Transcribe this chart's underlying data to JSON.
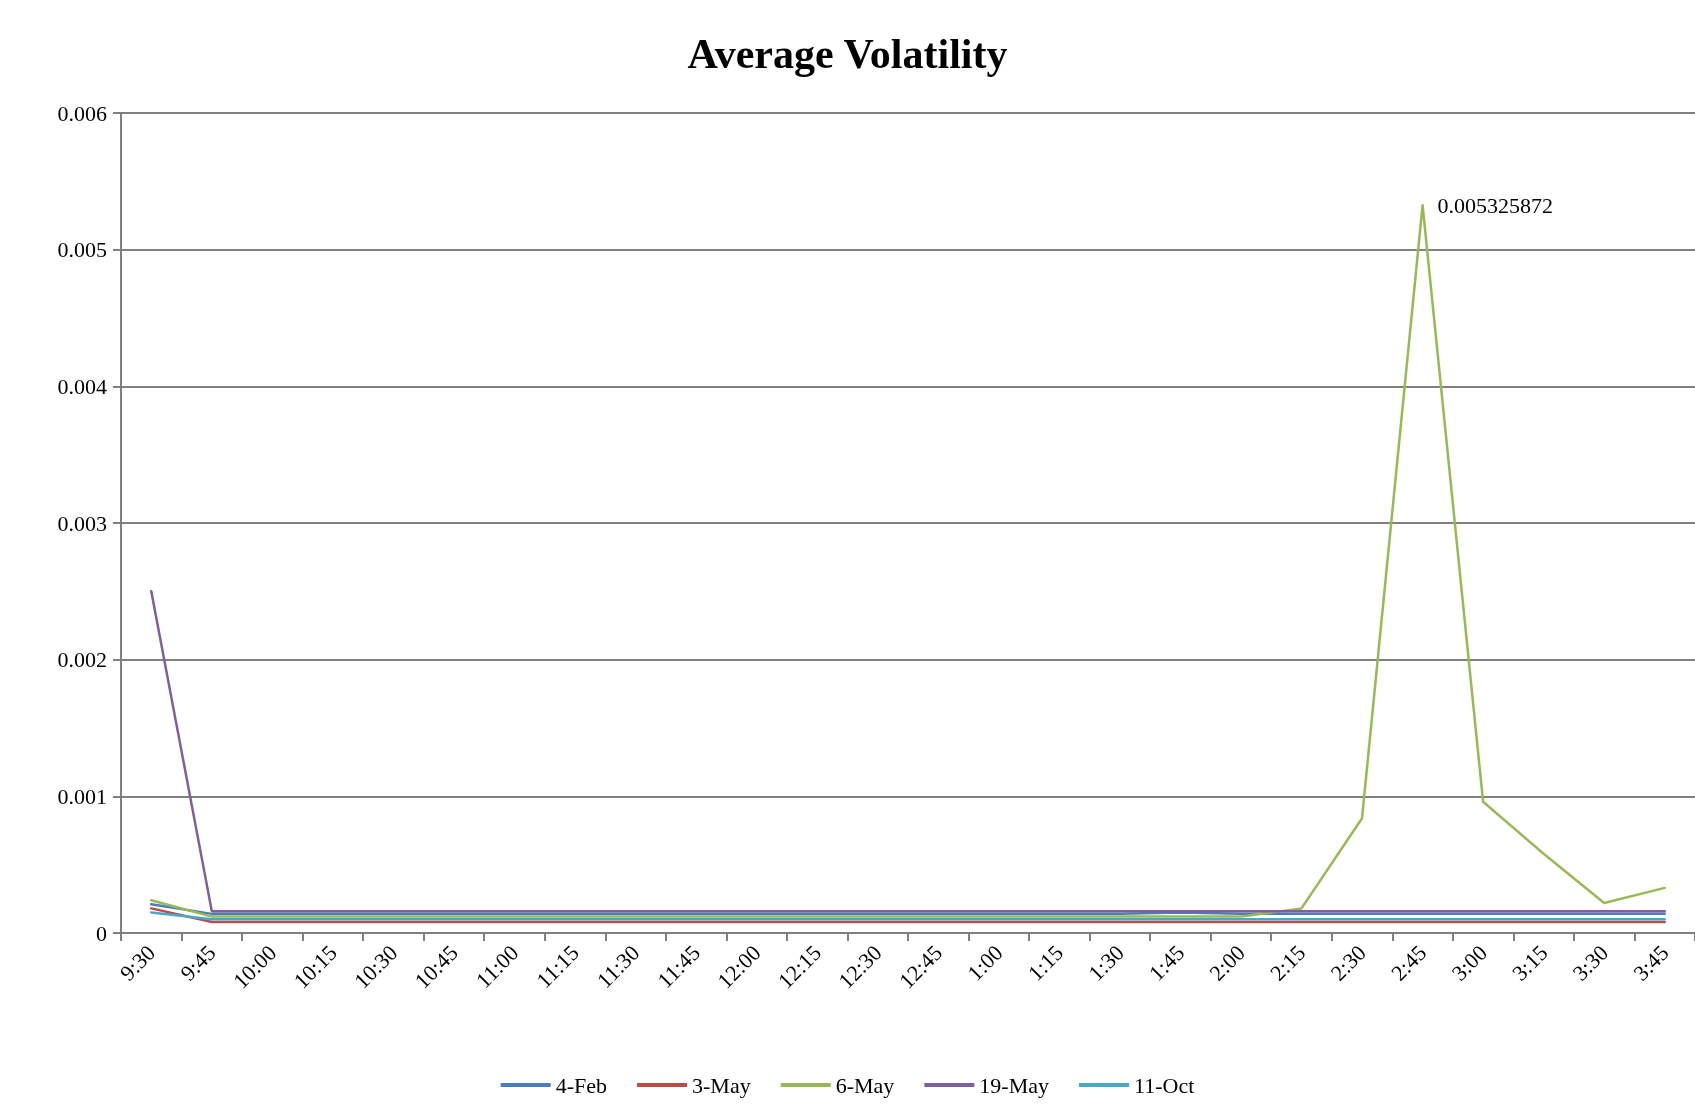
{
  "chart_data": {
    "type": "line",
    "title": "Average Volatility",
    "categories": [
      "9:30",
      "9:45",
      "10:00",
      "10:15",
      "10:30",
      "10:45",
      "11:00",
      "11:15",
      "11:30",
      "11:45",
      "12:00",
      "12:15",
      "12:30",
      "12:45",
      "1:00",
      "1:15",
      "1:30",
      "1:45",
      "2:00",
      "2:15",
      "2:30",
      "2:45",
      "3:00",
      "3:15",
      "3:30",
      "3:45"
    ],
    "series": [
      {
        "name": "4-Feb",
        "color": "#4a7ebb",
        "values": [
          0.00021,
          0.00014,
          0.00014,
          0.00014,
          0.00014,
          0.00014,
          0.00014,
          0.00014,
          0.00014,
          0.00014,
          0.00014,
          0.00014,
          0.00014,
          0.00014,
          0.00014,
          0.00014,
          0.00014,
          0.00015,
          0.00014,
          0.00014,
          0.00014,
          0.00014,
          0.00014,
          0.00014,
          0.00014,
          0.00014
        ]
      },
      {
        "name": "3-May",
        "color": "#be4b48",
        "values": [
          0.00018,
          8e-05,
          8e-05,
          8e-05,
          8e-05,
          8e-05,
          8e-05,
          8e-05,
          8e-05,
          8e-05,
          8e-05,
          8e-05,
          8e-05,
          8e-05,
          8e-05,
          8e-05,
          8e-05,
          8e-05,
          8e-05,
          8e-05,
          8e-05,
          8e-05,
          8e-05,
          8e-05,
          8e-05,
          8e-05
        ]
      },
      {
        "name": "6-May",
        "color": "#98b954",
        "values": [
          0.00024,
          0.00012,
          0.00012,
          0.00012,
          0.00012,
          0.00012,
          0.00012,
          0.00012,
          0.00012,
          0.00012,
          0.00012,
          0.00012,
          0.00012,
          0.00012,
          0.00012,
          0.00012,
          0.00012,
          0.00012,
          0.00012,
          0.00018,
          0.00084,
          0.005325872,
          0.00096,
          0.00058,
          0.00022,
          0.00033
        ],
        "value_labels": [
          null,
          null,
          null,
          null,
          null,
          null,
          null,
          null,
          null,
          null,
          null,
          null,
          null,
          null,
          null,
          null,
          null,
          null,
          null,
          null,
          null,
          "0.005325872",
          null,
          null,
          null,
          null
        ]
      },
      {
        "name": "19-May",
        "color": "#7d60a0",
        "values": [
          0.0025,
          0.00016,
          0.00016,
          0.00016,
          0.00016,
          0.00016,
          0.00016,
          0.00016,
          0.00016,
          0.00016,
          0.00016,
          0.00016,
          0.00016,
          0.00016,
          0.00016,
          0.00016,
          0.00016,
          0.00016,
          0.00016,
          0.00016,
          0.00016,
          0.00016,
          0.00016,
          0.00016,
          0.00016,
          0.00016
        ]
      },
      {
        "name": "11-Oct",
        "color": "#46aac5",
        "values": [
          0.00015,
          0.0001,
          0.0001,
          0.0001,
          0.0001,
          0.0001,
          0.0001,
          0.0001,
          0.0001,
          0.0001,
          0.0001,
          0.0001,
          0.0001,
          0.0001,
          0.0001,
          0.0001,
          0.0001,
          0.0001,
          0.0001,
          0.0001,
          0.0001,
          0.0001,
          0.0001,
          0.0001,
          0.0001,
          0.0001
        ]
      }
    ],
    "ylim": [
      0,
      0.006
    ],
    "yticks": [
      0,
      0.001,
      0.002,
      0.003,
      0.004,
      0.005,
      0.006
    ],
    "grid": "y",
    "legend": "bottom",
    "marker": "none",
    "line_style": "solid"
  }
}
